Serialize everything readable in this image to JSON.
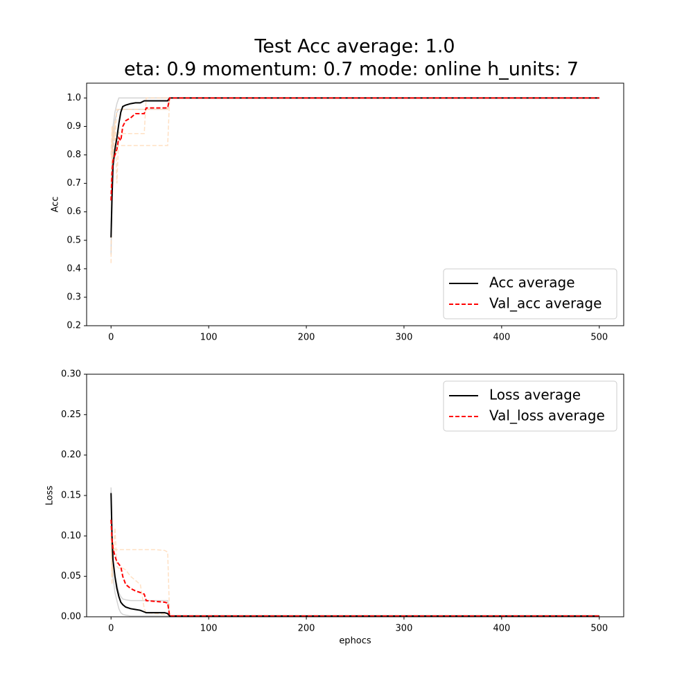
{
  "title": [
    "Test Acc average: 1.0",
    "eta: 0.9 momentum: 0.7 mode: online h_units: 7"
  ],
  "chart_data": [
    {
      "type": "line",
      "ylabel": "Acc",
      "x": [
        0,
        1,
        2,
        4,
        6,
        8,
        10,
        12,
        15,
        20,
        25,
        30,
        34,
        36,
        45,
        55,
        58,
        60,
        62,
        100,
        200,
        300,
        400,
        500
      ],
      "series": [
        {
          "color": "#c8c8c8",
          "style": "solid",
          "values": [
            0.45,
            0.7,
            0.85,
            0.92,
            0.95,
            0.96,
            0.96,
            0.96,
            0.96,
            0.96,
            0.96,
            0.96,
            0.96,
            0.96,
            0.96,
            0.96,
            0.96,
            1.0,
            1.0,
            1.0,
            1.0,
            1.0,
            1.0,
            1.0
          ]
        },
        {
          "color": "#c8c8c8",
          "style": "solid",
          "values": [
            0.55,
            0.75,
            0.9,
            0.95,
            0.98,
            1.0,
            1.0,
            1.0,
            1.0,
            1.0,
            1.0,
            1.0,
            1.0,
            1.0,
            1.0,
            1.0,
            1.0,
            1.0,
            1.0,
            1.0,
            1.0,
            1.0,
            1.0,
            1.0
          ]
        },
        {
          "color": "#ffd8b4",
          "style": "dashed",
          "values": [
            0.42,
            0.8,
            0.9,
            0.85,
            0.96,
            0.96,
            0.96,
            0.96,
            0.96,
            0.96,
            0.96,
            0.96,
            0.96,
            0.96,
            0.96,
            0.96,
            0.96,
            1.0,
            1.0,
            1.0,
            1.0,
            1.0,
            1.0,
            1.0
          ]
        },
        {
          "color": "#ffd8b4",
          "style": "dashed",
          "values": [
            0.7,
            0.85,
            0.88,
            0.8,
            0.83,
            0.833,
            0.833,
            0.833,
            0.833,
            0.833,
            0.833,
            0.833,
            0.833,
            0.833,
            0.833,
            0.833,
            0.833,
            1.0,
            1.0,
            1.0,
            1.0,
            1.0,
            1.0,
            1.0
          ]
        },
        {
          "color": "#ffd8b4",
          "style": "dashed",
          "values": [
            0.8,
            0.9,
            0.75,
            0.92,
            0.7,
            0.88,
            0.875,
            0.875,
            0.875,
            0.875,
            0.875,
            0.875,
            0.875,
            1.0,
            1.0,
            1.0,
            1.0,
            1.0,
            1.0,
            1.0,
            1.0,
            1.0,
            1.0,
            1.0
          ]
        },
        {
          "name": "Acc average",
          "color": "#000000",
          "style": "solid",
          "values": [
            0.51,
            0.65,
            0.76,
            0.82,
            0.86,
            0.91,
            0.95,
            0.97,
            0.975,
            0.98,
            0.983,
            0.983,
            0.99,
            0.99,
            0.99,
            0.99,
            0.99,
            1.0,
            1.0,
            1.0,
            1.0,
            1.0,
            1.0,
            1.0
          ]
        },
        {
          "name": "Val_acc average",
          "color": "#ff0000",
          "style": "dashed",
          "values": [
            0.64,
            0.74,
            0.78,
            0.8,
            0.82,
            0.86,
            0.85,
            0.9,
            0.92,
            0.93,
            0.945,
            0.945,
            0.945,
            0.965,
            0.965,
            0.965,
            0.965,
            1.0,
            1.0,
            1.0,
            1.0,
            1.0,
            1.0,
            1.0
          ]
        }
      ],
      "xlim": [
        -25,
        525
      ],
      "xticks": [
        0,
        100,
        200,
        300,
        400,
        500
      ],
      "ylim": [
        0.2,
        1.052
      ],
      "yticks": [
        0.2,
        0.3,
        0.4,
        0.5,
        0.6,
        0.7,
        0.8,
        0.9,
        {
          "value": 1,
          "label": "1.0"
        }
      ],
      "legend": "lower right"
    },
    {
      "type": "line",
      "xlabel": "ephocs",
      "ylabel": "Loss",
      "x": [
        0,
        1,
        2,
        4,
        6,
        8,
        10,
        12,
        15,
        20,
        25,
        30,
        34,
        36,
        45,
        55,
        58,
        60,
        62,
        100,
        200,
        300,
        400,
        500
      ],
      "series": [
        {
          "color": "#c8c8c8",
          "style": "solid",
          "values": [
            0.16,
            0.08,
            0.05,
            0.03,
            0.02,
            0.01,
            0.005,
            0.003,
            0.002,
            0.001,
            0.001,
            0.001,
            0.001,
            0.001,
            0.001,
            0.001,
            0.001,
            0.001,
            0.001,
            0.001,
            0.001,
            0.001,
            0.001,
            0.001
          ]
        },
        {
          "color": "#c8c8c8",
          "style": "solid",
          "values": [
            0.155,
            0.1,
            0.07,
            0.05,
            0.04,
            0.03,
            0.025,
            0.022,
            0.021,
            0.02,
            0.02,
            0.02,
            0.02,
            0.02,
            0.02,
            0.02,
            0.02,
            0.001,
            0.001,
            0.001,
            0.001,
            0.001,
            0.001,
            0.001
          ]
        },
        {
          "color": "#ffd8b4",
          "style": "dashed",
          "values": [
            0.12,
            0.05,
            0.09,
            0.083,
            0.083,
            0.083,
            0.083,
            0.083,
            0.083,
            0.083,
            0.083,
            0.083,
            0.083,
            0.083,
            0.083,
            0.082,
            0.08,
            0.001,
            0.001,
            0.001,
            0.001,
            0.001,
            0.001,
            0.001
          ]
        },
        {
          "color": "#ffd8b4",
          "style": "dashed",
          "values": [
            0.1,
            0.04,
            0.07,
            0.11,
            0.062,
            0.06,
            0.06,
            0.06,
            0.058,
            0.05,
            0.045,
            0.04,
            0.01,
            0.005,
            0.004,
            0.003,
            0.003,
            0.001,
            0.001,
            0.001,
            0.001,
            0.001,
            0.001,
            0.001
          ]
        },
        {
          "name": "Loss average",
          "color": "#000000",
          "style": "solid",
          "values": [
            0.153,
            0.1,
            0.07,
            0.05,
            0.035,
            0.025,
            0.018,
            0.015,
            0.012,
            0.01,
            0.009,
            0.008,
            0.006,
            0.005,
            0.005,
            0.005,
            0.004,
            0.001,
            0.001,
            0.001,
            0.001,
            0.001,
            0.001,
            0.001
          ]
        },
        {
          "name": "Val_loss average",
          "color": "#ff0000",
          "style": "dashed",
          "values": [
            0.12,
            0.095,
            0.085,
            0.075,
            0.068,
            0.065,
            0.062,
            0.05,
            0.04,
            0.035,
            0.032,
            0.03,
            0.028,
            0.02,
            0.019,
            0.018,
            0.017,
            0.001,
            0.001,
            0.001,
            0.001,
            0.001,
            0.001,
            0.001
          ]
        }
      ],
      "xlim": [
        -25,
        525
      ],
      "xticks": [
        0,
        100,
        200,
        300,
        400,
        500
      ],
      "ylim": [
        0,
        0.3
      ],
      "yticks": [
        {
          "value": 0,
          "label": "0.00"
        },
        {
          "value": 0.05,
          "label": "0.05"
        },
        {
          "value": 0.1,
          "label": "0.10"
        },
        {
          "value": 0.15,
          "label": "0.15"
        },
        {
          "value": 0.2,
          "label": "0.20"
        },
        {
          "value": 0.25,
          "label": "0.25"
        },
        {
          "value": 0.3,
          "label": "0.30"
        }
      ],
      "legend": "upper right"
    }
  ]
}
